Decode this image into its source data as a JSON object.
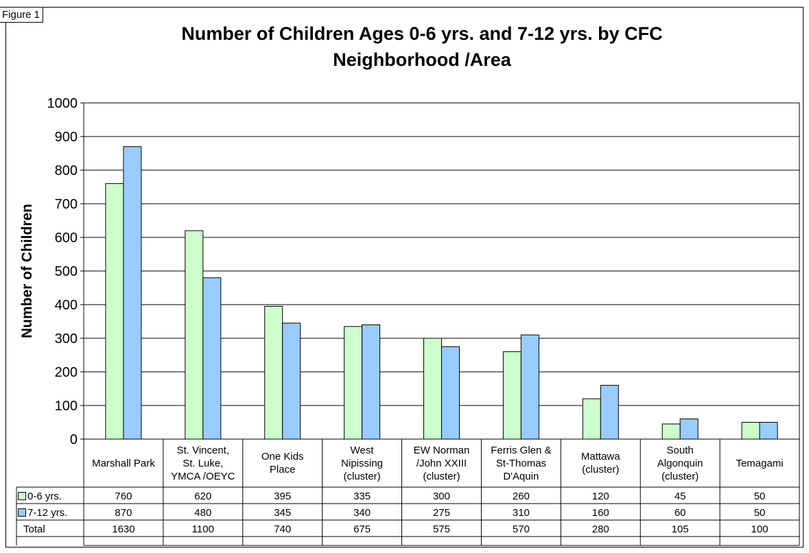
{
  "figure_label": "Figure 1",
  "chart_data": {
    "type": "bar",
    "title": "Number of Children Ages 0-6 yrs. and 7-12 yrs. by CFC Neighborhood /Area",
    "title_lines": [
      "Number of Children Ages 0-6 yrs. and 7-12 yrs. by CFC",
      "Neighborhood /Area"
    ],
    "ylabel": "Number of Children",
    "xlabel": "",
    "ylim": [
      0,
      1000
    ],
    "yticks": [
      "0",
      "100",
      "200",
      "300",
      "400",
      "500",
      "600",
      "700",
      "800",
      "900",
      "1000"
    ],
    "grid": true,
    "legend": "data-table",
    "categories": [
      [
        "Marshall Park"
      ],
      [
        "St. Vincent,",
        "St. Luke,",
        "YMCA /OEYC"
      ],
      [
        "One Kids",
        "Place"
      ],
      [
        "West",
        "Nipissing",
        "(cluster)"
      ],
      [
        "EW Norman",
        "/John XXIII",
        "(cluster)"
      ],
      [
        "Ferris Glen &",
        "St-Thomas",
        "D'Aquin"
      ],
      [
        "Mattawa",
        "(cluster)"
      ],
      [
        "South",
        "Algonquin",
        "(cluster)"
      ],
      [
        "Temagami"
      ]
    ],
    "series": [
      {
        "name": "0-6 yrs.",
        "color": "#ccffcc",
        "values": [
          760,
          620,
          395,
          335,
          300,
          260,
          120,
          45,
          50
        ]
      },
      {
        "name": "7-12 yrs.",
        "color": "#99ccff",
        "values": [
          870,
          480,
          345,
          340,
          275,
          310,
          160,
          60,
          50
        ]
      }
    ],
    "table_rows": [
      {
        "label": "0-6 yrs.",
        "values": [
          "760",
          "620",
          "395",
          "335",
          "300",
          "260",
          "120",
          "45",
          "50"
        ]
      },
      {
        "label": "7-12 yrs.",
        "values": [
          "870",
          "480",
          "345",
          "340",
          "275",
          "310",
          "160",
          "60",
          "50"
        ]
      },
      {
        "label": "Total",
        "values": [
          "1630",
          "1100",
          "740",
          "675",
          "575",
          "570",
          "280",
          "105",
          "100"
        ]
      }
    ]
  }
}
